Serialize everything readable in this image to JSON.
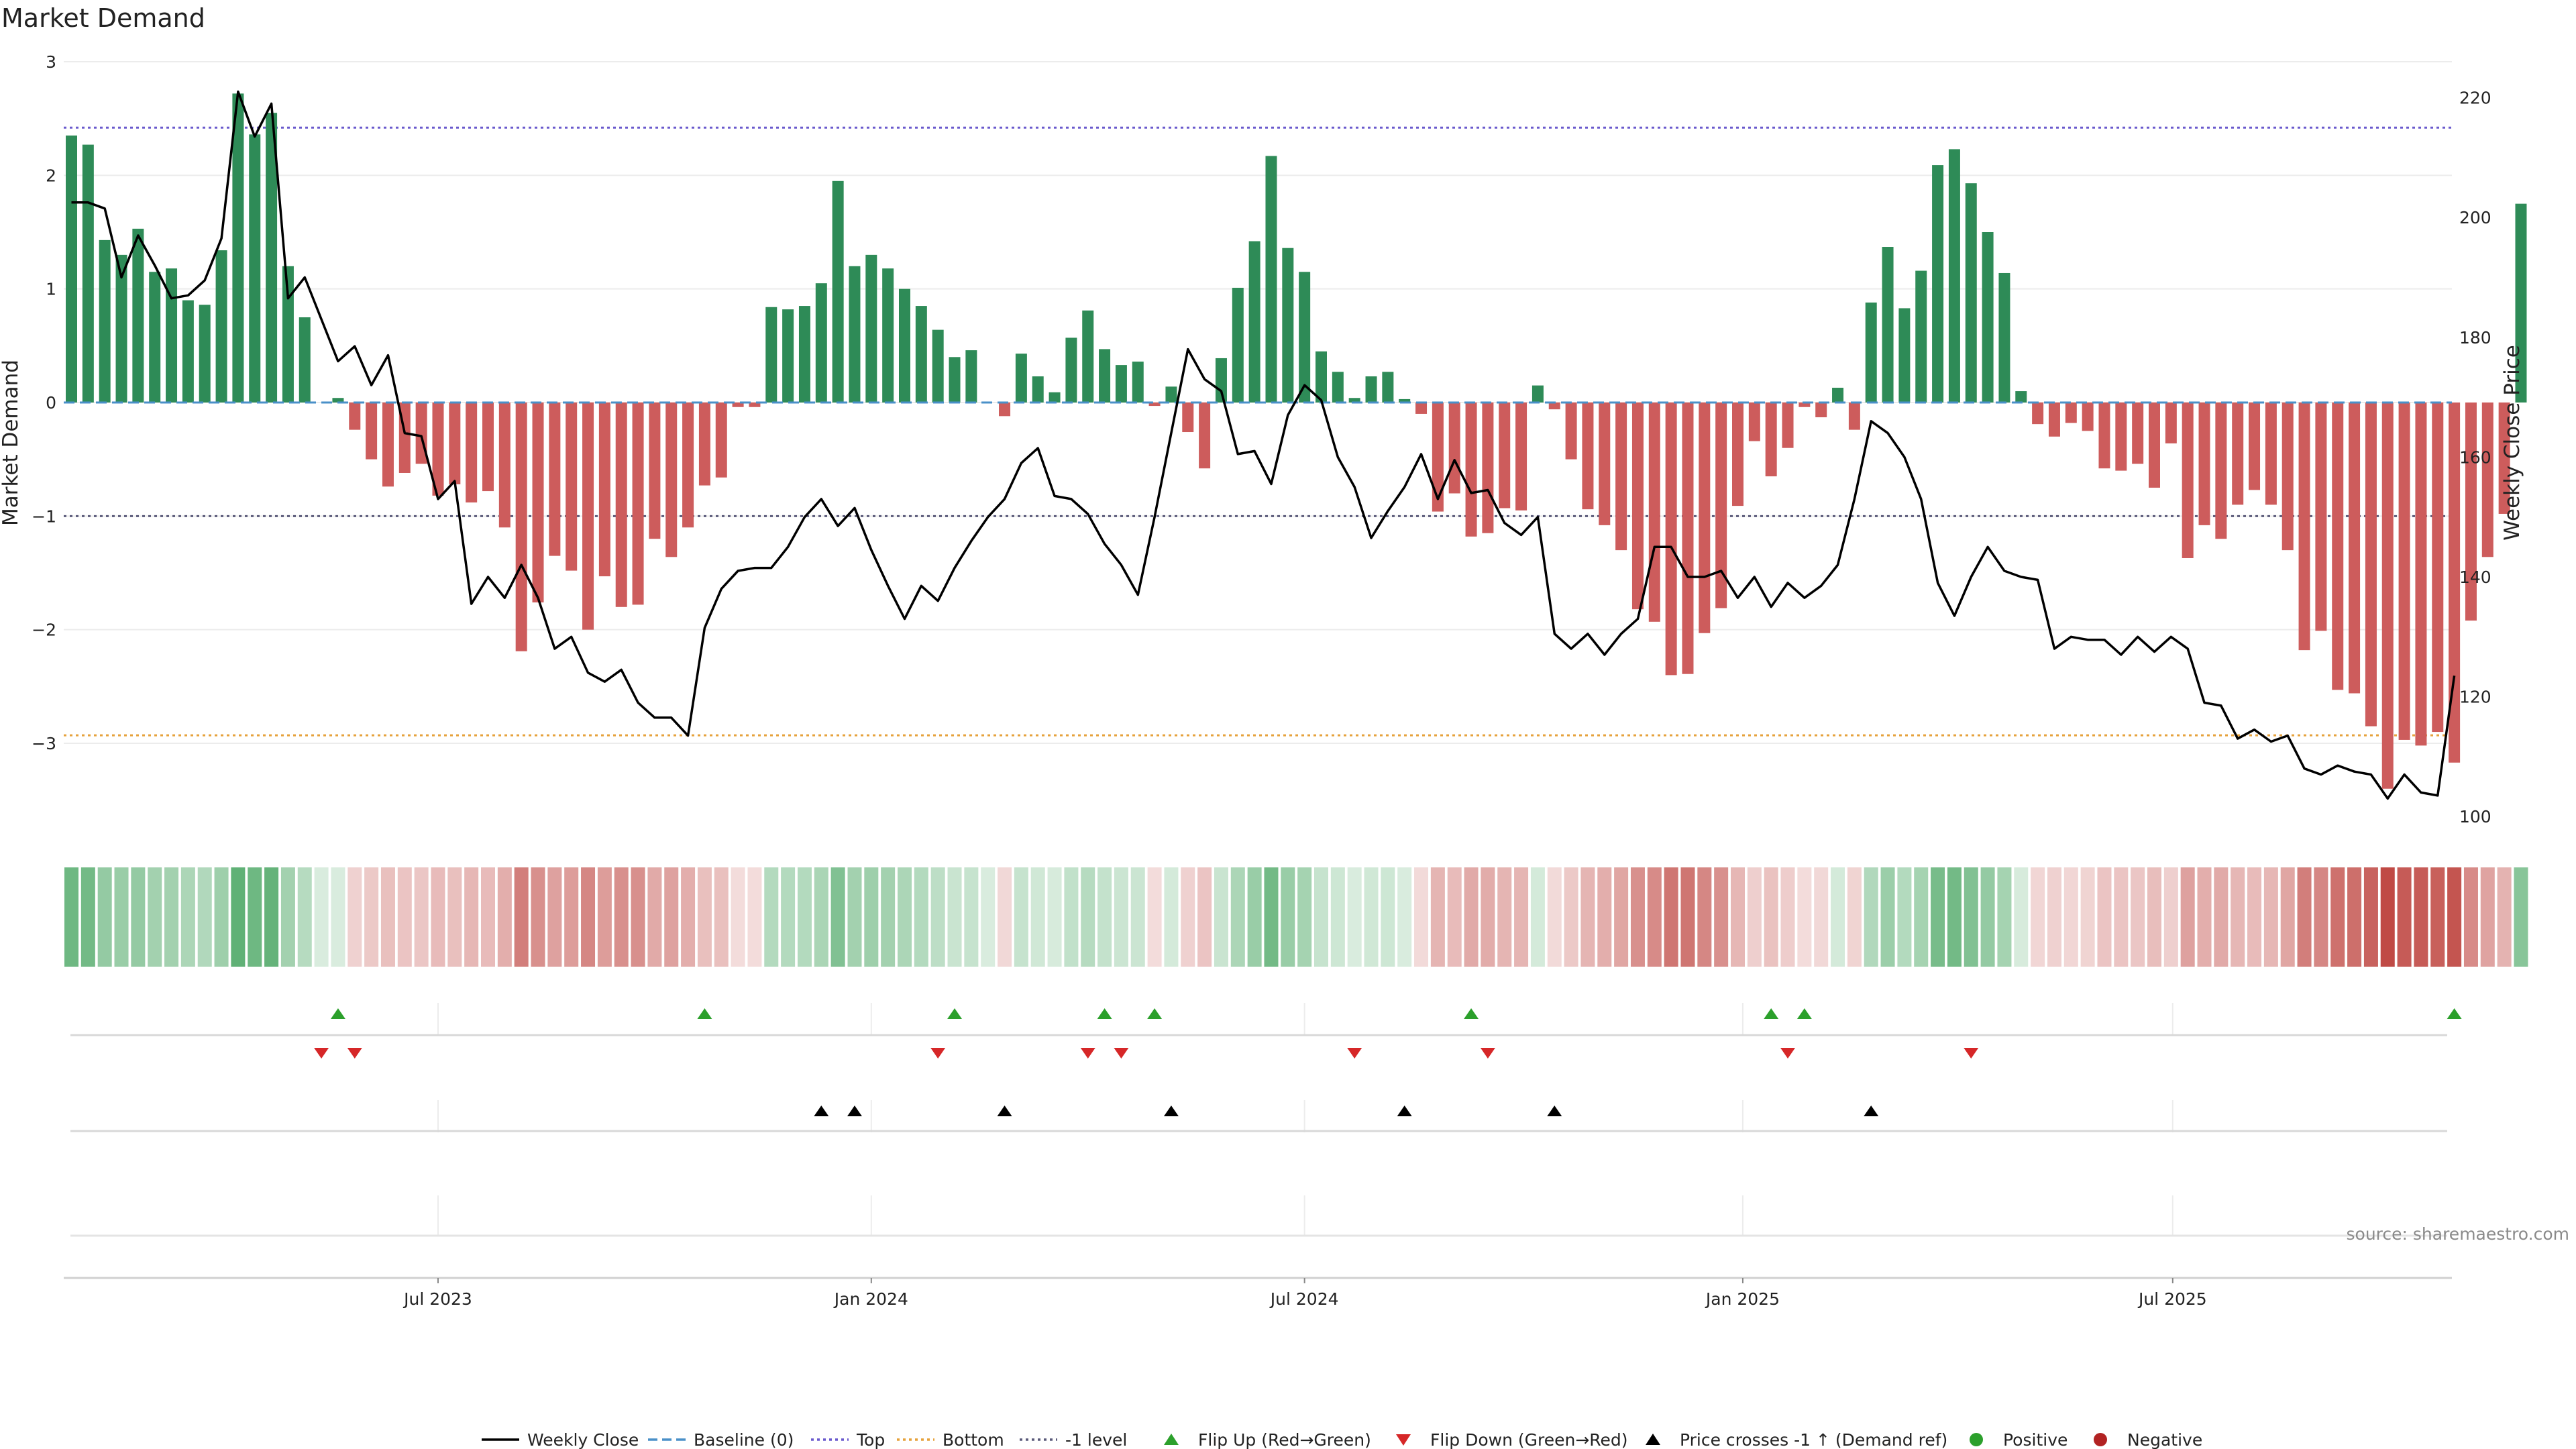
{
  "chart_data": {
    "type": "bar",
    "title": "Market Demand",
    "ylabel_left": "Market Demand",
    "ylabel_right": "Weekly Close Price",
    "ylim_left": [
      -3.75,
      3
    ],
    "ylim_right": [
      98,
      226
    ],
    "yticks_left": [
      3,
      2,
      1,
      0,
      -1,
      -2,
      -3
    ],
    "yticks_left_labels": [
      "3",
      "2",
      "1",
      "0",
      "−1",
      "−2",
      "−3"
    ],
    "yticks_right": [
      220,
      200,
      180,
      160,
      140,
      120,
      100
    ],
    "yticks_right_labels": [
      "220",
      "200",
      "180",
      "160",
      "140",
      "120",
      "100"
    ],
    "x_tick_labels": [
      "Jul 2023",
      "Jan 2024",
      "Jul 2024",
      "Jan 2025",
      "Jul 2025"
    ],
    "x_tick_weeks": [
      22,
      48,
      74,
      100.3,
      126.1
    ],
    "n_weeks": 144,
    "levels": {
      "top": 2.42,
      "bottom": -2.93,
      "minus_one": -1.0,
      "baseline": 0
    },
    "demand": [
      2.35,
      2.27,
      1.43,
      1.3,
      1.53,
      1.15,
      1.18,
      0.9,
      0.86,
      1.34,
      2.72,
      2.36,
      2.55,
      1.2,
      0.75,
      0,
      0.04,
      -0.24,
      -0.5,
      -0.74,
      -0.62,
      -0.54,
      -0.82,
      -0.72,
      -0.88,
      -0.78,
      -1.1,
      -2.19,
      -1.76,
      -1.35,
      -1.48,
      -2.0,
      -1.53,
      -1.8,
      -1.78,
      -1.2,
      -1.36,
      -1.1,
      -0.73,
      -0.66,
      -0.04,
      -0.04,
      0.84,
      0.82,
      0.85,
      1.05,
      1.95,
      1.2,
      1.3,
      1.18,
      1.0,
      0.85,
      0.64,
      0.4,
      0.46,
      0,
      -0.12,
      0.43,
      0.23,
      0.09,
      0.57,
      0.81,
      0.47,
      0.33,
      0.36,
      -0.03,
      0.14,
      -0.26,
      -0.58,
      0.39,
      1.01,
      1.42,
      2.17,
      1.36,
      1.15,
      0.45,
      0.27,
      0.04,
      0.23,
      0.27,
      0.03,
      -0.1,
      -0.96,
      -0.8,
      -1.18,
      -1.15,
      -0.93,
      -0.95,
      0.15,
      -0.06,
      -0.5,
      -0.94,
      -1.08,
      -1.3,
      -1.82,
      -1.93,
      -2.4,
      -2.39,
      -2.03,
      -1.81,
      -0.91,
      -0.34,
      -0.65,
      -0.4,
      -0.04,
      -0.13,
      0.13,
      -0.24,
      0.88,
      1.37,
      0.83,
      1.16,
      2.09,
      2.23,
      1.93,
      1.5,
      1.14,
      0.1,
      -0.19,
      -0.3,
      -0.18,
      -0.25,
      -0.58,
      -0.6,
      -0.54,
      -0.75,
      -0.36,
      -1.37,
      -1.08,
      -1.2,
      -0.9,
      -0.77,
      -0.9,
      -1.3,
      -2.18,
      -2.01,
      -2.53,
      -2.56,
      -2.85,
      -3.4,
      -2.97,
      -3.02,
      -2.9,
      -3.17,
      -1.92,
      -1.36,
      -0.98,
      1.75
    ],
    "price": [
      202.5,
      202.5,
      201.5,
      190,
      197,
      192,
      186.5,
      187,
      189.5,
      196.5,
      221,
      213.5,
      219,
      186.5,
      190,
      183,
      176,
      178.5,
      172,
      177,
      164,
      163.5,
      153,
      156,
      135.5,
      140,
      136.5,
      142,
      136.5,
      128,
      130,
      124,
      122.5,
      124.5,
      119,
      116.5,
      116.5,
      113.5,
      131.5,
      138,
      141,
      141.5,
      141.5,
      145,
      150,
      153,
      148.5,
      151.5,
      144.5,
      138.5,
      133,
      138.5,
      136,
      141.5,
      146,
      150,
      153,
      159,
      161.5,
      153.5,
      153,
      150.5,
      145.5,
      142,
      137,
      150,
      164,
      178,
      173,
      171,
      160.5,
      161,
      155.5,
      167,
      172,
      169.5,
      160,
      155,
      146.5,
      151,
      155,
      160.5,
      153,
      159.5,
      154,
      154.5,
      149,
      147,
      150,
      130.5,
      128,
      130.5,
      127,
      130.5,
      133,
      145,
      145,
      140,
      140,
      141,
      136.5,
      140,
      135,
      139,
      136.5,
      138.5,
      142,
      153,
      166,
      164,
      160,
      153,
      139,
      133.5,
      140,
      145,
      141,
      140,
      139.5,
      128,
      130,
      129.5,
      129.5,
      127,
      130,
      127.5,
      130,
      128,
      119,
      118.5,
      113,
      114.5,
      112.5,
      113.5,
      108,
      107,
      108.5,
      107.5,
      107,
      103,
      107,
      104,
      103.5,
      123.5
    ],
    "gauge": [
      2.3,
      2.2,
      1.5,
      1.4,
      1.5,
      1.2,
      1.2,
      1.0,
      0.9,
      1.3,
      2.6,
      2.3,
      2.5,
      1.2,
      0.8,
      0.05,
      0.05,
      -0.3,
      -0.5,
      -0.7,
      -0.6,
      -0.55,
      -0.8,
      -0.7,
      -0.9,
      -0.8,
      -1.1,
      -2.2,
      -1.8,
      -1.4,
      -1.5,
      -2.0,
      -1.5,
      -1.8,
      -1.8,
      -1.2,
      -1.4,
      -1.1,
      -0.7,
      -0.7,
      -0.05,
      -0.05,
      0.85,
      0.85,
      0.85,
      1.05,
      1.9,
      1.2,
      1.3,
      1.2,
      1.0,
      0.85,
      0.65,
      0.4,
      0.45,
      0.05,
      -0.15,
      0.45,
      0.25,
      0.1,
      0.55,
      0.8,
      0.5,
      0.35,
      0.35,
      -0.05,
      0.15,
      -0.3,
      -0.6,
      0.4,
      1.0,
      1.4,
      2.2,
      1.4,
      1.15,
      0.45,
      0.3,
      0.05,
      0.25,
      0.3,
      0.05,
      -0.1,
      -0.95,
      -0.8,
      -1.2,
      -1.15,
      -0.95,
      -0.95,
      0.15,
      -0.1,
      -0.5,
      -0.95,
      -1.1,
      -1.3,
      -1.8,
      -1.9,
      -2.4,
      -2.4,
      -2.0,
      -1.8,
      -0.9,
      -0.35,
      -0.65,
      -0.4,
      -0.05,
      -0.15,
      0.15,
      -0.25,
      0.9,
      1.35,
      0.85,
      1.15,
      2.1,
      2.2,
      1.9,
      1.5,
      1.15,
      0.1,
      -0.2,
      -0.3,
      -0.2,
      -0.25,
      -0.6,
      -0.6,
      -0.55,
      -0.75,
      -0.35,
      -1.4,
      -1.1,
      -1.2,
      -0.9,
      -0.8,
      -0.9,
      -1.3,
      -2.2,
      -2.0,
      -2.5,
      -2.55,
      -2.85,
      -3.4,
      -3.0,
      -3.0,
      -2.9,
      -3.15,
      -1.9,
      -1.35,
      -1.0,
      1.75
    ],
    "flip_up_weeks": [
      16,
      38,
      53,
      62,
      65,
      84,
      102,
      104,
      143
    ],
    "flip_down_weeks": [
      15,
      17,
      52,
      61,
      63,
      77,
      85,
      103,
      114
    ],
    "price_cross_weeks": [
      45,
      47,
      56,
      66,
      80,
      89,
      108
    ],
    "colors": {
      "positive_bar": "#2e8b57",
      "negative_bar": "#cd5c5c",
      "price_line": "#000000",
      "top_line": "#6a5acd",
      "bottom_line": "#e6a23c",
      "minus_one_line": "#5a5a7a",
      "baseline": "#4a90c8",
      "flip_up": "#2ca02c",
      "flip_down": "#d62728",
      "price_cross": "#000000",
      "positive_dot": "#2ca02c",
      "negative_dot": "#b22222"
    },
    "legend": [
      {
        "label": "Weekly Close",
        "kind": "line-solid",
        "color": "#000000"
      },
      {
        "label": "Baseline (0)",
        "kind": "line-dashed",
        "color": "#4a90c8"
      },
      {
        "label": "Top",
        "kind": "line-dotted",
        "color": "#6a5acd"
      },
      {
        "label": "Bottom",
        "kind": "line-dotted",
        "color": "#e6a23c"
      },
      {
        "label": "-1 level",
        "kind": "line-dotted",
        "color": "#5a5a7a"
      },
      {
        "label": "Flip Up (Red→Green)",
        "kind": "tri-up",
        "color": "#2ca02c"
      },
      {
        "label": "Flip Down (Green→Red)",
        "kind": "tri-down",
        "color": "#d62728"
      },
      {
        "label": "Price crosses -1 ↑ (Demand ref)",
        "kind": "tri-up",
        "color": "#000000"
      },
      {
        "label": "Positive",
        "kind": "dot",
        "color": "#2ca02c"
      },
      {
        "label": "Negative",
        "kind": "dot",
        "color": "#b22222"
      }
    ],
    "source": "source: sharemaestro.com"
  }
}
